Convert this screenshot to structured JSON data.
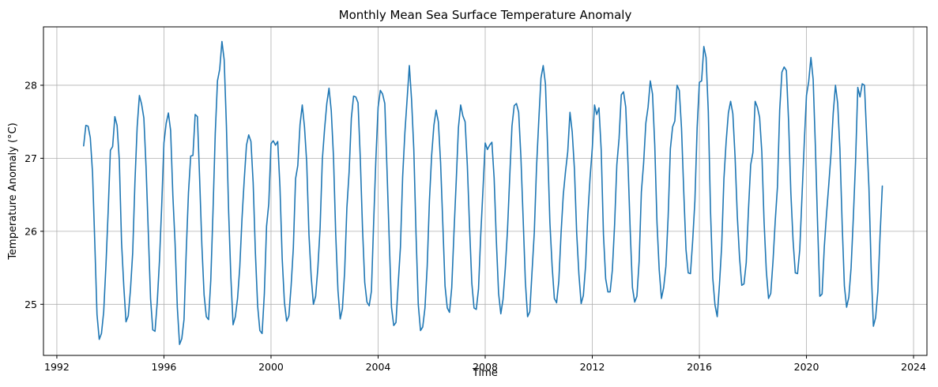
{
  "chart_data": {
    "type": "line",
    "title": "Monthly Mean Sea Surface Temperature Anomaly",
    "xlabel": "Time",
    "ylabel": "Temperature Anomaly (°C)",
    "x_ticks": [
      1992,
      1996,
      2000,
      2004,
      2008,
      2012,
      2016,
      2020,
      2024
    ],
    "y_ticks": [
      25,
      26,
      27,
      28
    ],
    "xlim": [
      1991.5,
      2024.5
    ],
    "ylim": [
      24.3,
      28.8
    ],
    "grid": true,
    "line_color": "#1f77b4",
    "series": [
      {
        "start_year": 1993,
        "values": [
          27.17,
          27.45,
          27.44,
          27.28,
          26.8,
          25.85,
          24.86,
          24.52,
          24.6,
          24.9,
          25.53,
          26.27,
          27.11,
          27.16,
          27.57,
          27.45,
          26.97,
          25.85,
          25.25,
          24.76,
          24.84,
          25.2,
          25.71,
          26.67,
          27.43,
          27.86,
          27.74,
          27.55,
          26.87,
          25.98,
          25.08,
          24.65,
          24.63,
          25.03,
          25.6,
          26.35,
          27.21,
          27.48,
          27.62,
          27.38,
          26.49,
          25.83,
          24.96,
          24.45,
          24.53,
          24.79,
          25.73,
          26.53,
          27.03,
          27.04,
          27.6,
          27.57,
          26.72,
          25.81,
          25.13,
          24.83,
          24.79,
          25.33,
          26.28,
          27.34,
          28.06,
          28.22,
          28.6,
          28.35,
          27.45,
          26.27,
          25.37,
          24.72,
          24.83,
          25.08,
          25.51,
          26.18,
          26.71,
          27.18,
          27.32,
          27.23,
          26.66,
          25.7,
          24.98,
          24.64,
          24.6,
          25.14,
          26.07,
          26.38,
          27.2,
          27.24,
          27.18,
          27.23,
          26.61,
          25.63,
          25.03,
          24.77,
          24.84,
          25.25,
          25.77,
          26.72,
          26.9,
          27.46,
          27.73,
          27.43,
          26.94,
          25.96,
          25.38,
          25.0,
          25.11,
          25.5,
          26.05,
          26.98,
          27.4,
          27.75,
          27.96,
          27.65,
          27.02,
          25.96,
          25.19,
          24.8,
          24.94,
          25.45,
          26.32,
          26.81,
          27.55,
          27.85,
          27.84,
          27.76,
          27.01,
          26.05,
          25.3,
          25.03,
          24.98,
          25.18,
          26.12,
          26.99,
          27.7,
          27.93,
          27.88,
          27.75,
          26.83,
          25.87,
          24.96,
          24.71,
          24.75,
          25.28,
          25.78,
          26.75,
          27.35,
          27.81,
          28.27,
          27.8,
          27.12,
          25.96,
          25.0,
          24.64,
          24.69,
          24.95,
          25.52,
          26.42,
          27.04,
          27.45,
          27.66,
          27.5,
          26.94,
          26.1,
          25.25,
          24.95,
          24.89,
          25.23,
          25.98,
          26.68,
          27.42,
          27.73,
          27.58,
          27.5,
          26.9,
          26.05,
          25.29,
          24.95,
          24.93,
          25.21,
          25.95,
          26.57,
          27.21,
          27.12,
          27.18,
          27.22,
          26.73,
          25.87,
          25.15,
          24.87,
          25.07,
          25.49,
          26.02,
          26.75,
          27.44,
          27.72,
          27.75,
          27.63,
          27.02,
          26.18,
          25.31,
          24.83,
          24.9,
          25.45,
          25.98,
          26.87,
          27.51,
          28.1,
          28.27,
          28.02,
          27.13,
          26.12,
          25.52,
          25.08,
          25.02,
          25.32,
          25.97,
          26.5,
          26.82,
          27.09,
          27.63,
          27.36,
          26.85,
          25.98,
          25.41,
          25.01,
          25.12,
          25.53,
          26.22,
          26.73,
          27.14,
          27.73,
          27.6,
          27.69,
          27.11,
          25.96,
          25.35,
          25.17,
          25.17,
          25.47,
          26.09,
          26.91,
          27.27,
          27.87,
          27.91,
          27.7,
          26.93,
          26.01,
          25.23,
          25.03,
          25.11,
          25.59,
          26.54,
          26.93,
          27.48,
          27.7,
          28.06,
          27.88,
          27.18,
          26.12,
          25.47,
          25.08,
          25.23,
          25.52,
          26.2,
          27.13,
          27.43,
          27.51,
          28.0,
          27.93,
          27.41,
          26.54,
          25.75,
          25.43,
          25.42,
          25.87,
          26.42,
          27.42,
          28.04,
          28.06,
          28.53,
          28.38,
          27.64,
          26.27,
          25.36,
          24.99,
          24.83,
          25.27,
          25.8,
          26.72,
          27.23,
          27.62,
          27.78,
          27.61,
          27.02,
          26.21,
          25.64,
          25.26,
          25.28,
          25.57,
          26.29,
          26.91,
          27.08,
          27.78,
          27.7,
          27.56,
          27.08,
          26.13,
          25.46,
          25.08,
          25.15,
          25.59,
          26.14,
          26.61,
          27.66,
          28.18,
          28.25,
          28.2,
          27.5,
          26.53,
          25.87,
          25.43,
          25.42,
          25.75,
          26.48,
          27.2,
          27.86,
          28.05,
          28.38,
          28.08,
          27.16,
          26.09,
          25.11,
          25.14,
          25.79,
          26.24,
          26.64,
          27.06,
          27.62,
          28.0,
          27.75,
          27.12,
          26.1,
          25.25,
          24.96,
          25.1,
          25.5,
          26.18,
          26.95,
          27.97,
          27.84,
          28.02,
          28.0,
          27.3,
          26.6,
          25.5,
          24.7,
          24.82,
          25.18,
          25.95,
          26.62
        ]
      }
    ]
  }
}
